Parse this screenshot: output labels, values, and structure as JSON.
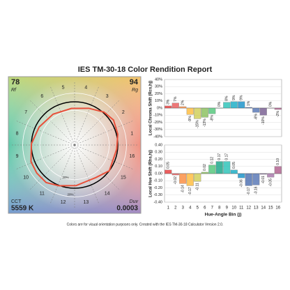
{
  "title": "IES TM-30-18 Color Rendition Report",
  "note": "Colors are for visual orientation purposes only. Created with the IES TM-30-18 Calculator Version 2.0.",
  "bin_colors": [
    "#e62828",
    "#e74b4b",
    "#fb812e",
    "#ffb529",
    "#cbca46",
    "#7eb94c",
    "#41c06d",
    "#009c7c",
    "#16bcb0",
    "#00a4bf",
    "#0085c3",
    "#3b62aa",
    "#4568ae",
    "#6a4e85",
    "#9d69a1",
    "#a74f81"
  ],
  "chart_data": [
    {
      "type": "vector",
      "rf": 78,
      "rf_label": "Rf",
      "rg": 94,
      "rg_label": "Rg",
      "cct_label": "CCT",
      "cct": "5559 K",
      "duv_label": "Duv",
      "duv": 0.0003,
      "ring_label": "20%",
      "reference_color": "#000000",
      "test_color": "#e8503a"
    },
    {
      "type": "bar",
      "y_label": "Local Chroma Shift (Rcs,hj)",
      "categories": [
        "1",
        "2",
        "3",
        "4",
        "5",
        "6",
        "7",
        "8",
        "9",
        "10",
        "11",
        "12",
        "13",
        "14",
        "15",
        "16"
      ],
      "values": [
        3,
        7,
        2,
        -9,
        -15,
        -13,
        -8,
        0,
        8,
        9,
        9,
        1,
        -6,
        -10,
        0,
        -2
      ],
      "value_labels": [
        "3%",
        "7%",
        "2%",
        "-9%",
        "-15%",
        "-13%",
        "-8%",
        "0%",
        "8%",
        "9%",
        "9%",
        "1%",
        "-6%",
        "-10%",
        "0%",
        "-2%"
      ],
      "ylim": [
        -40,
        40
      ],
      "yticks": [
        {
          "value": 40,
          "label": "40%"
        },
        {
          "value": 30,
          "label": "30%"
        },
        {
          "value": 20,
          "label": "20%"
        },
        {
          "value": 10,
          "label": "10%"
        },
        {
          "value": 0,
          "label": "0%"
        },
        {
          "value": -10,
          "label": "-10%"
        },
        {
          "value": -20,
          "label": "-20%"
        },
        {
          "value": -30,
          "label": "-30%"
        },
        {
          "value": -40,
          "label": "-40%"
        }
      ],
      "grid": true
    },
    {
      "type": "bar",
      "y_label": "Local Hue Shift (Rhs,hj)",
      "x_label": "Hue-Angle Bin (j)",
      "categories": [
        "1",
        "2",
        "3",
        "4",
        "5",
        "6",
        "7",
        "8",
        "9",
        "10",
        "11",
        "12",
        "13",
        "14",
        "15",
        "16"
      ],
      "values": [
        0.05,
        -0.02,
        -0.14,
        -0.17,
        -0.11,
        0.02,
        0.12,
        0.17,
        0.17,
        0.05,
        -0.06,
        -0.17,
        -0.16,
        -0.01,
        -0.05,
        0.1
      ],
      "value_labels": [
        "0.05",
        "-0.02",
        "-0.14",
        "-0.17",
        "-0.11",
        "0.02",
        "0.12",
        "0.17",
        "0.17",
        "0.05",
        "-0.06",
        "-0.17",
        "-0.16",
        "-0.01",
        "-0.05",
        "0.10"
      ],
      "ylim": [
        -0.4,
        0.4
      ],
      "yticks": [
        {
          "value": 0.4,
          "label": "0.40"
        },
        {
          "value": 0.3,
          "label": "0.30"
        },
        {
          "value": 0.2,
          "label": "0.20"
        },
        {
          "value": 0.1,
          "label": "0.10"
        },
        {
          "value": 0,
          "label": "0.00"
        },
        {
          "value": -0.1,
          "label": "-0.10"
        },
        {
          "value": -0.2,
          "label": "-0.20"
        },
        {
          "value": -0.3,
          "label": "-0.30"
        },
        {
          "value": -0.4,
          "label": "-0.40"
        }
      ],
      "grid": true
    }
  ]
}
